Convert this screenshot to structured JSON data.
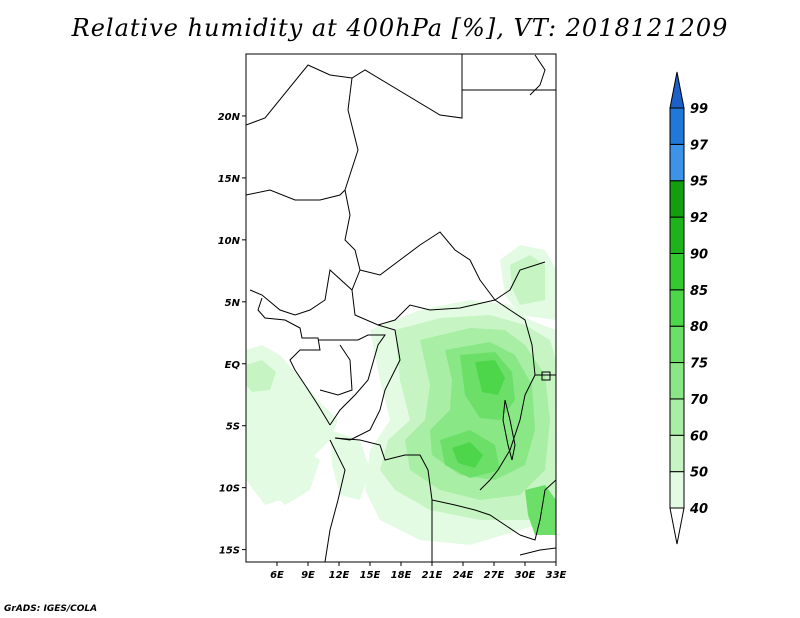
{
  "title": "Relative humidity at 400hPa [%], VT: 2018121209",
  "credit": "GrADS: IGES/COLA",
  "map": {
    "lon_range": [
      3,
      33
    ],
    "lat_range": [
      -16,
      25
    ],
    "lon_ticks": [
      "6E",
      "9E",
      "12E",
      "15E",
      "18E",
      "21E",
      "24E",
      "27E",
      "30E",
      "33E"
    ],
    "lon_tick_values": [
      6,
      9,
      12,
      15,
      18,
      21,
      24,
      27,
      30,
      33
    ],
    "lat_ticks": [
      "20N",
      "15N",
      "10N",
      "5N",
      "EQ",
      "5S",
      "10S",
      "15S"
    ],
    "lat_tick_values": [
      20,
      15,
      10,
      5,
      0,
      -5,
      -10,
      -15
    ]
  },
  "colorbar": {
    "levels": [
      "40",
      "50",
      "60",
      "70",
      "75",
      "80",
      "85",
      "90",
      "92",
      "95",
      "97",
      "99"
    ],
    "colors": [
      "#ffffff",
      "#e4fbe3",
      "#c6f5c3",
      "#a8eea4",
      "#8ae786",
      "#6cdf68",
      "#4ed64a",
      "#33c92f",
      "#1fb31b",
      "#139e10",
      "#3c93e8",
      "#2078d8",
      "#1c60c8"
    ]
  }
}
